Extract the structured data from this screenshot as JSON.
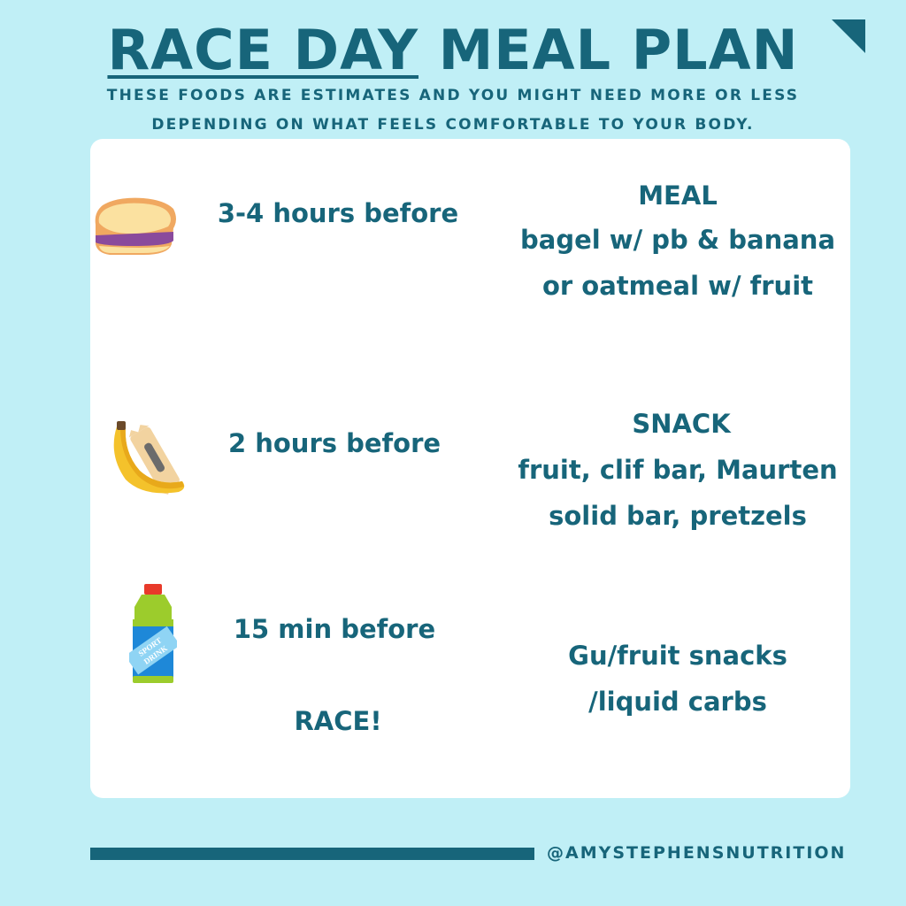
{
  "header": {
    "title_underlined": "RACE DAY",
    "title_rest": "MEAL PLAN",
    "subtitle_line1": "THESE FOODS ARE  ESTIMATES AND YOU MIGHT NEED MORE OR LESS",
    "subtitle_line2": "DEPENDING ON WHAT FEELS COMFORTABLE TO YOUR BODY."
  },
  "rows": [
    {
      "icon": "sandwich-icon",
      "time": "3-4 hours before",
      "heading": "MEAL",
      "line1": "bagel w/ pb & banana",
      "line2": "or oatmeal w/ fruit"
    },
    {
      "icon": "banana-bar-icon",
      "time": "2 hours before",
      "heading": "SNACK",
      "line1": "fruit, clif bar, Maurten",
      "line2": "solid bar, pretzels"
    },
    {
      "icon": "sport-drink-icon",
      "time": "15 min before",
      "line1": "Gu/fruit snacks",
      "line2": "/liquid carbs"
    }
  ],
  "race_label": "RACE!",
  "footer": {
    "handle": "@AMYSTEPHENSNUTRITION"
  },
  "colors": {
    "background": "#c0eff6",
    "text": "#17657a",
    "card": "#ffffff"
  }
}
